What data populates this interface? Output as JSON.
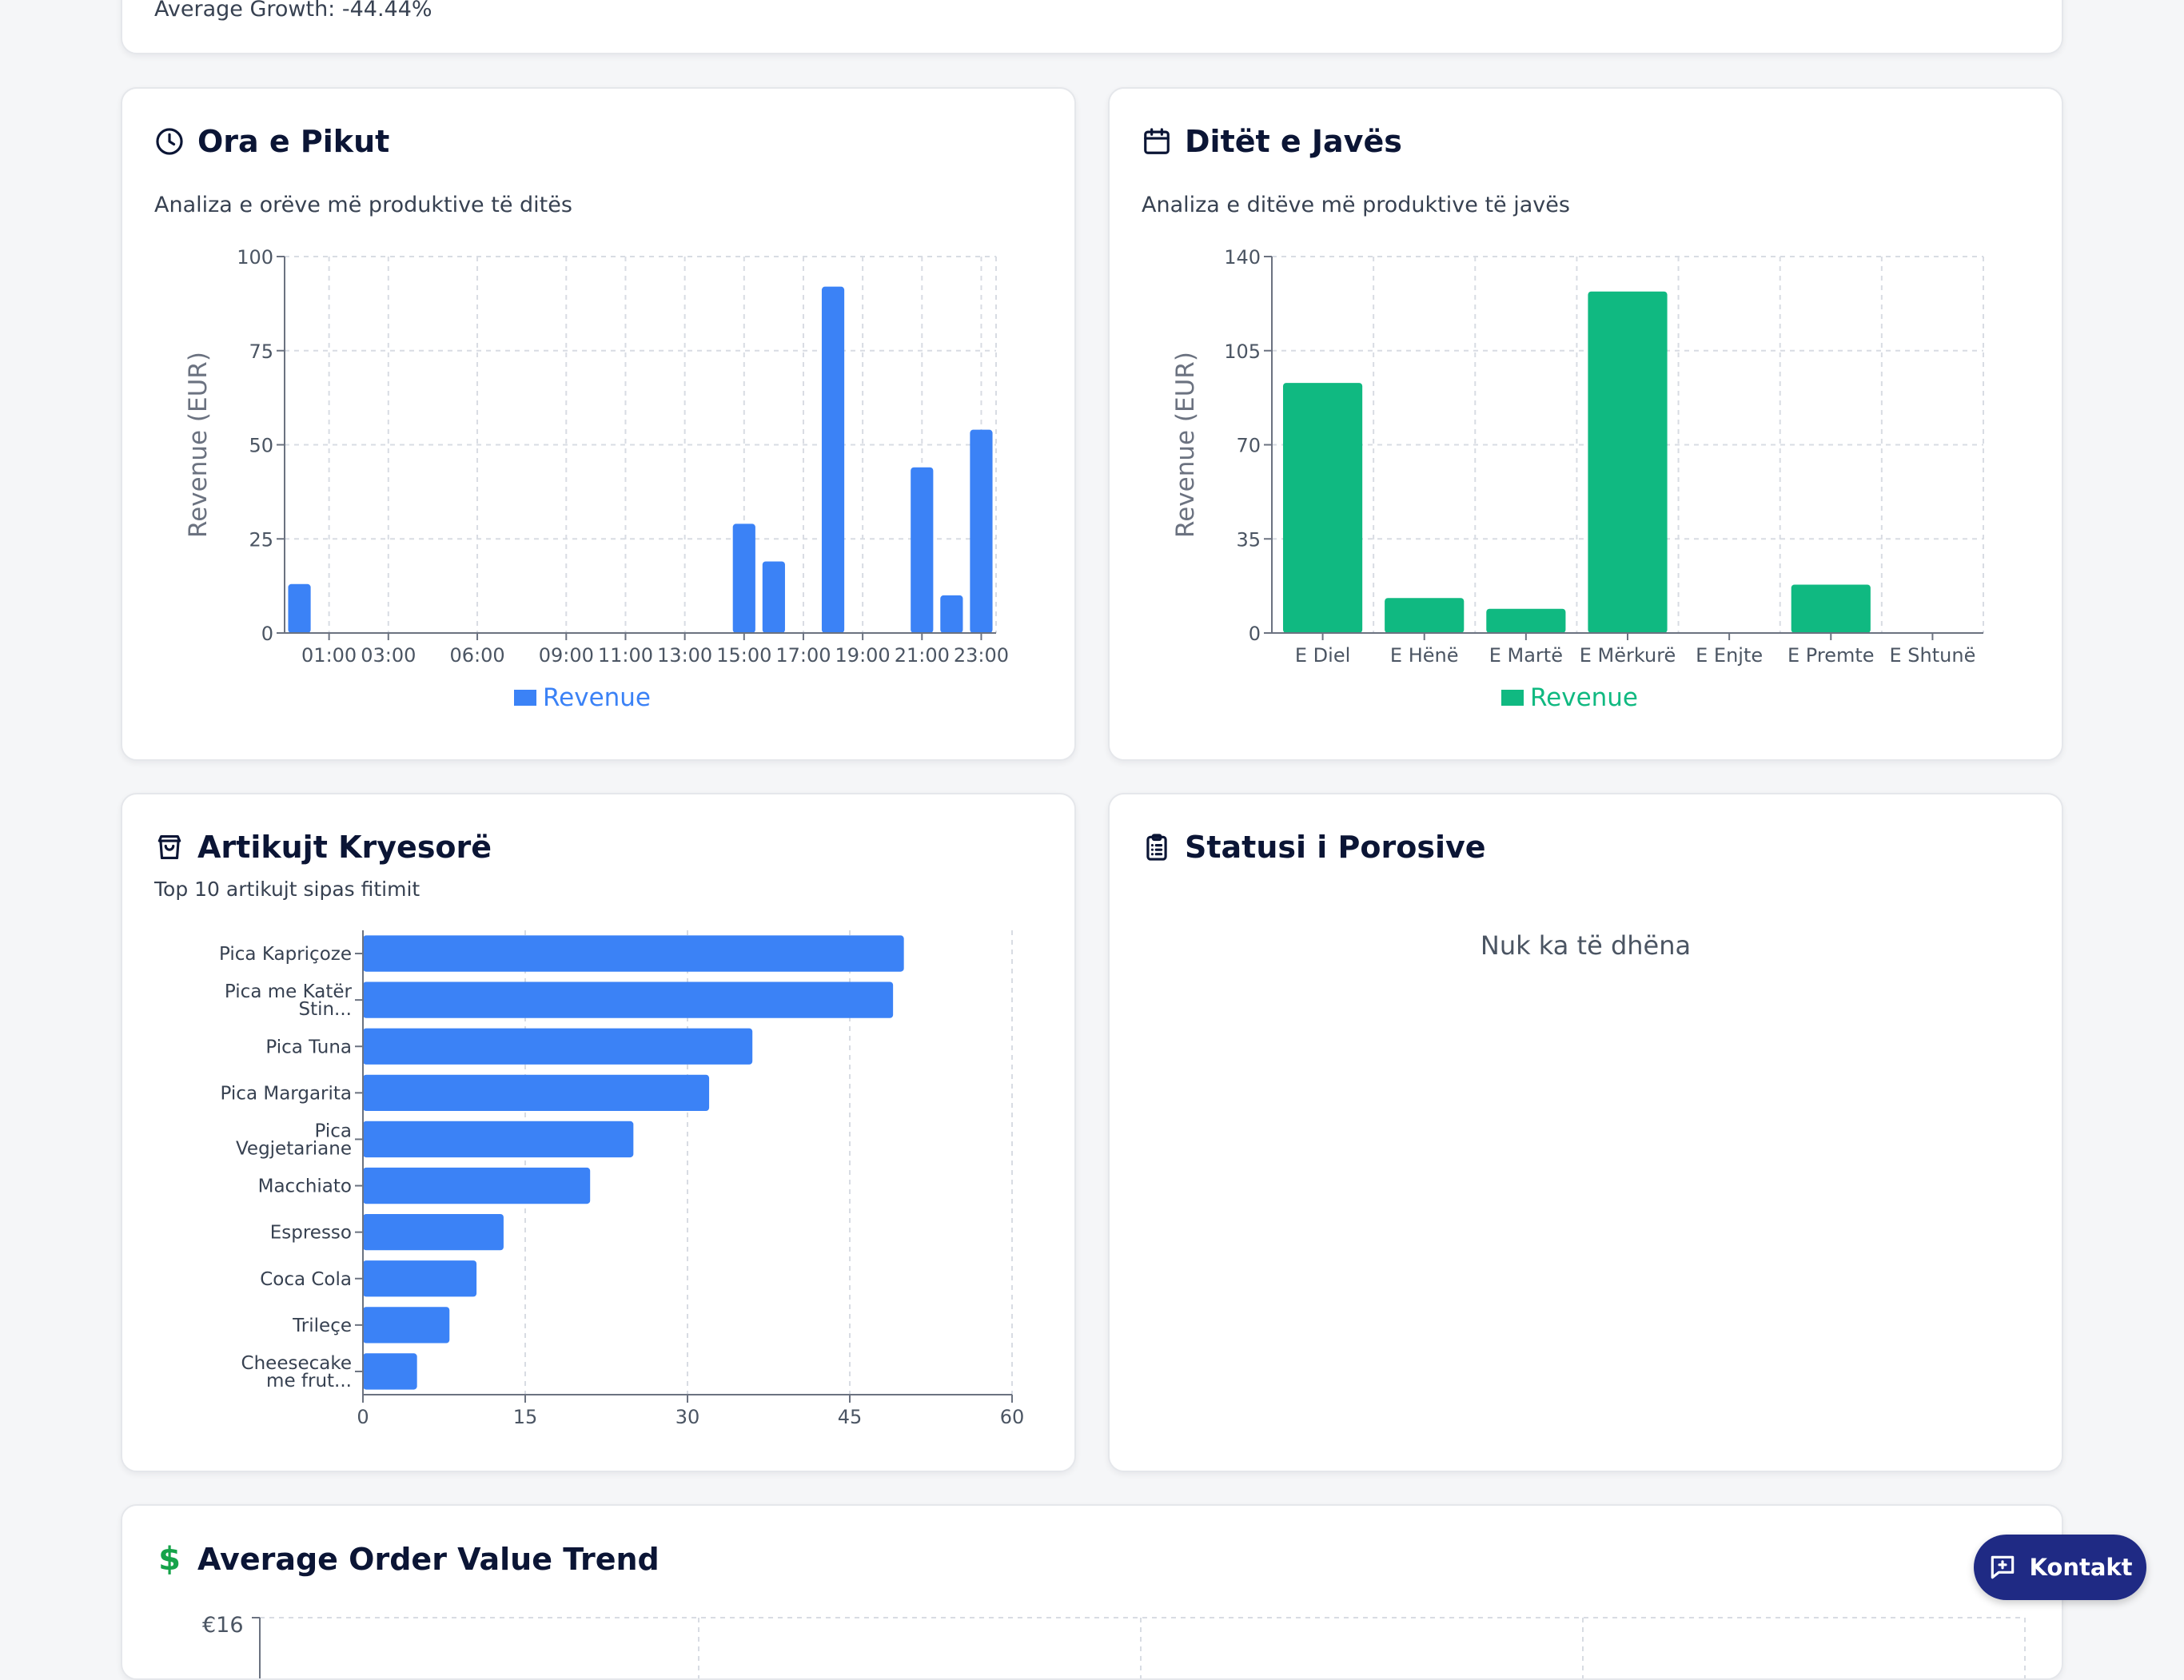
{
  "top_card": {
    "growth_text": "Average Growth: -44.44%"
  },
  "peak_hours": {
    "title": "Ora e Pikut",
    "subtitle": "Analiza e orëve më produktive të ditës",
    "icon": "clock-icon",
    "accent": "#3b82f6"
  },
  "weekdays": {
    "title": "Ditët e Javës",
    "subtitle": "Analiza e ditëve më produktive të javës",
    "icon": "calendar-icon",
    "accent": "#10b981"
  },
  "top_items": {
    "title": "Artikujt Kryesorë",
    "subtitle": "Top 10 artikujt sipas fitimit",
    "icon": "shopping-bag-icon",
    "accent": "#3b82f6"
  },
  "order_status": {
    "title": "Statusi i Porosive",
    "empty_text": "Nuk ka të dhëna",
    "icon": "clipboard-list-icon"
  },
  "aov": {
    "title": "Average Order Value Trend",
    "icon": "dollar-icon",
    "accent": "#16a34a",
    "first_tick": "€16"
  },
  "kontakt_button": {
    "label": "Kontakt",
    "icon": "message-plus-icon"
  },
  "chart_data": [
    {
      "id": "peak_hours",
      "type": "bar",
      "x": [
        0,
        1,
        3,
        6,
        9,
        11,
        13,
        15,
        16,
        17,
        18,
        19,
        21,
        22,
        23
      ],
      "x_tick_values": [
        1,
        3,
        6,
        9,
        11,
        13,
        15,
        17,
        19,
        21,
        23
      ],
      "x_tick_labels": [
        "01:00",
        "03:00",
        "06:00",
        "09:00",
        "11:00",
        "13:00",
        "15:00",
        "17:00",
        "19:00",
        "21:00",
        "23:00"
      ],
      "series": [
        {
          "name": "Revenue",
          "color": "#3b82f6",
          "points": [
            [
              0,
              13
            ],
            [
              15,
              29
            ],
            [
              16,
              19
            ],
            [
              18,
              92
            ],
            [
              21,
              44
            ],
            [
              22,
              10
            ],
            [
              23,
              54
            ]
          ]
        }
      ],
      "xlim": [
        -0.5,
        23.5
      ],
      "ylim": [
        0,
        100
      ],
      "yticks": [
        0,
        25,
        50,
        75,
        100
      ],
      "ylabel": "Revenue (EUR)",
      "legend": "bottom",
      "grid": true
    },
    {
      "id": "weekdays",
      "type": "bar",
      "categories": [
        "E Diel",
        "E Hënë",
        "E Martë",
        "E Mërkurë",
        "E Enjte",
        "E Premte",
        "E Shtunë"
      ],
      "series": [
        {
          "name": "Revenue",
          "color": "#10b981",
          "values": [
            93,
            13,
            9,
            127,
            0,
            18,
            0
          ]
        }
      ],
      "ylim": [
        0,
        140
      ],
      "yticks": [
        0,
        35,
        70,
        105,
        140
      ],
      "ylabel": "Revenue (EUR)",
      "legend": "bottom",
      "grid": true
    },
    {
      "id": "top_items",
      "type": "bar",
      "orientation": "horizontal",
      "categories": [
        [
          "Pica Kapriçoze"
        ],
        [
          "Pica me Katër",
          "Stin..."
        ],
        [
          "Pica Tuna"
        ],
        [
          "Pica Margarita"
        ],
        [
          "Pica",
          "Vegjetariane"
        ],
        [
          "Macchiato"
        ],
        [
          "Espresso"
        ],
        [
          "Coca Cola"
        ],
        [
          "Trileçe"
        ],
        [
          "Cheesecake",
          "me frut..."
        ]
      ],
      "series": [
        {
          "color": "#3b82f6",
          "values": [
            50,
            49,
            36,
            32,
            25,
            21,
            13,
            10.5,
            8,
            5
          ]
        }
      ],
      "xlim": [
        0,
        60
      ],
      "xticks": [
        0,
        15,
        30,
        45,
        60
      ],
      "grid": true
    }
  ]
}
